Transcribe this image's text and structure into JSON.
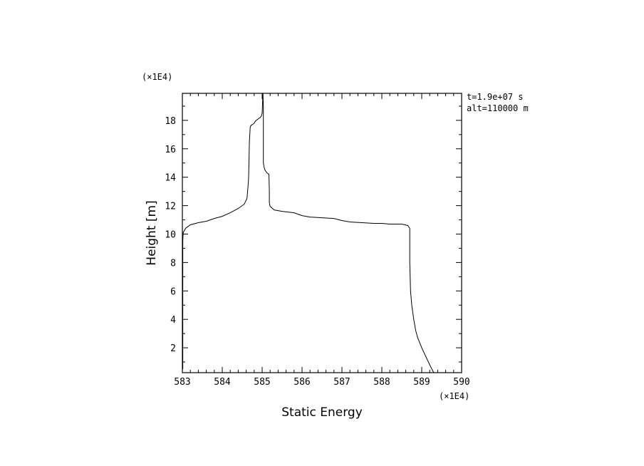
{
  "chart_data": {
    "type": "line",
    "xlabel": "Static Energy",
    "ylabel": "Height [m]",
    "x_multiplier": "(×1E4)",
    "y_multiplier": "(×1E4)",
    "xlim": [
      583,
      590
    ],
    "ylim": [
      0.25,
      19.9
    ],
    "x_ticks": [
      583,
      584,
      585,
      586,
      587,
      588,
      589,
      590
    ],
    "x_tick_labels": [
      "583",
      "584",
      "585",
      "586",
      "587",
      "588",
      "589",
      "590"
    ],
    "y_ticks": [
      2,
      4,
      6,
      8,
      10,
      12,
      14,
      16,
      18
    ],
    "y_tick_labels": [
      "2",
      "4",
      "6",
      "8",
      "10",
      "12",
      "14",
      "16",
      "18"
    ],
    "grid": false,
    "annotations": [
      "t=1.9e+07 s",
      "alt=110000 m"
    ],
    "series": [
      {
        "x": [
          583.01,
          583.01,
          583.02,
          583.08,
          583.2,
          583.4,
          583.6,
          583.8,
          584.0,
          584.2,
          584.4,
          584.55,
          584.62,
          584.65,
          584.66,
          584.68,
          584.7,
          584.72,
          584.75,
          584.78,
          584.8,
          584.82,
          584.85,
          584.9,
          584.95,
          584.98,
          585.0,
          585.02,
          585.03,
          585.03,
          585.05,
          585.07,
          585.12,
          585.17,
          585.18,
          585.18,
          585.2,
          585.3,
          585.5,
          585.8,
          586.0,
          586.2,
          586.5,
          586.8,
          587.0,
          587.2,
          587.5,
          587.8,
          588.0,
          588.2,
          588.5,
          588.65,
          588.7,
          588.7,
          588.72,
          588.75,
          588.8,
          588.85,
          588.9,
          589.0,
          589.1,
          589.2,
          589.3
        ],
        "y": [
          0.5,
          9.5,
          10.1,
          10.4,
          10.65,
          10.8,
          10.9,
          11.1,
          11.25,
          11.5,
          11.8,
          12.1,
          12.5,
          13.5,
          14.0,
          16.5,
          17.5,
          17.65,
          17.7,
          17.75,
          17.8,
          17.9,
          18.0,
          18.1,
          18.2,
          18.3,
          18.5,
          19.9,
          19.0,
          15.0,
          14.7,
          14.5,
          14.3,
          14.2,
          13.0,
          12.2,
          11.95,
          11.7,
          11.6,
          11.5,
          11.3,
          11.2,
          11.15,
          11.1,
          10.95,
          10.85,
          10.8,
          10.75,
          10.75,
          10.7,
          10.7,
          10.6,
          10.4,
          8.0,
          6.0,
          5.0,
          4.0,
          3.2,
          2.7,
          2.0,
          1.4,
          0.8,
          0.25
        ]
      }
    ]
  }
}
